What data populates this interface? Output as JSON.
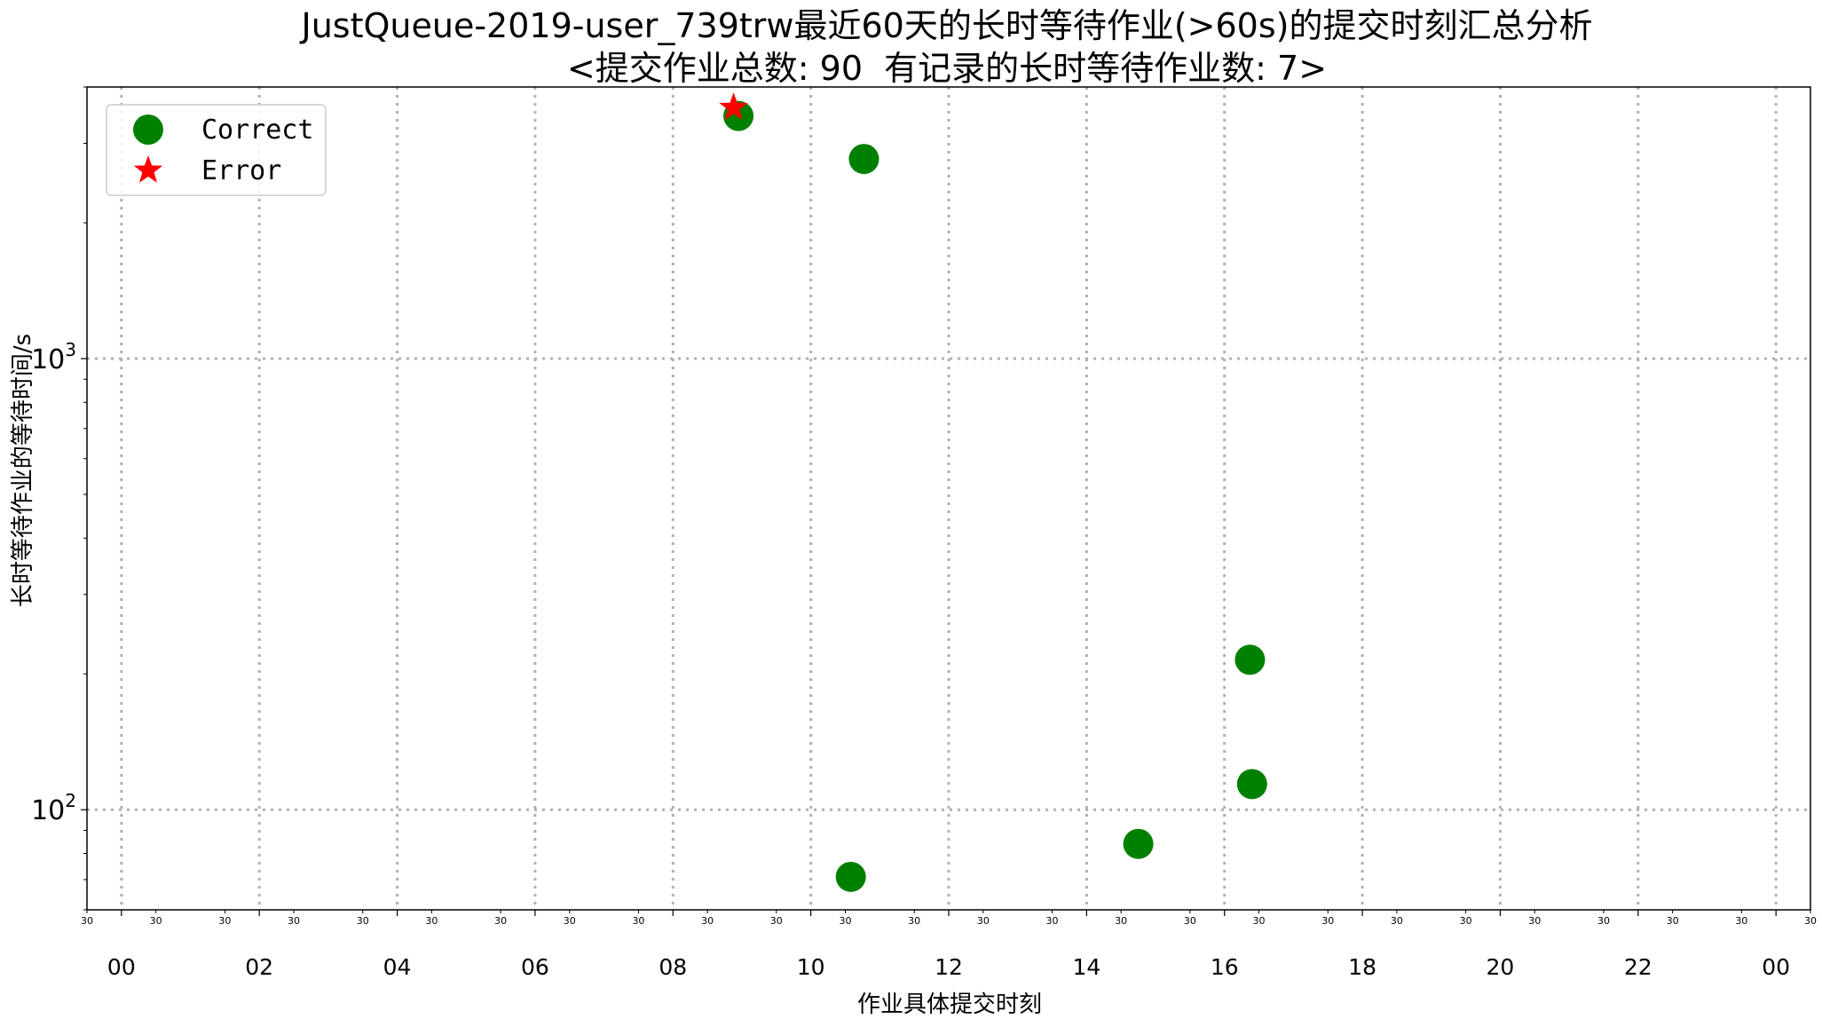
{
  "chart_data": {
    "type": "scatter",
    "title": "JustQueue-2019-user_739trw最近60天的长时等待作业(>60s)的提交时刻汇总分析",
    "subtitle": "<提交作业总数: 90  有记录的长时等待作业数: 7>",
    "xlabel": "作业具体提交时刻",
    "ylabel": "长时等待作业的等待时间/s",
    "x_unit": "hour of day",
    "xlim": [
      -0.5,
      24.5
    ],
    "y_scale": "log",
    "ylim": [
      60,
      4000
    ],
    "grid": true,
    "legend_position": "upper-left",
    "x_major_ticks": [
      {
        "value": 0,
        "label": "00"
      },
      {
        "value": 2,
        "label": "02"
      },
      {
        "value": 4,
        "label": "04"
      },
      {
        "value": 6,
        "label": "06"
      },
      {
        "value": 8,
        "label": "08"
      },
      {
        "value": 10,
        "label": "10"
      },
      {
        "value": 12,
        "label": "12"
      },
      {
        "value": 14,
        "label": "14"
      },
      {
        "value": 16,
        "label": "16"
      },
      {
        "value": 18,
        "label": "18"
      },
      {
        "value": 20,
        "label": "20"
      },
      {
        "value": 22,
        "label": "22"
      },
      {
        "value": 24,
        "label": "00"
      }
    ],
    "x_minor_tick_label": "30",
    "y_ticks": [
      {
        "value": 100,
        "base": "10",
        "exp": "2"
      },
      {
        "value": 1000,
        "base": "10",
        "exp": "3"
      }
    ],
    "series": [
      {
        "name": "Correct",
        "marker": "circle",
        "color": "#008000",
        "points": [
          {
            "x": 8.95,
            "y": 3450
          },
          {
            "x": 10.77,
            "y": 2770
          },
          {
            "x": 10.58,
            "y": 71
          },
          {
            "x": 14.75,
            "y": 84
          },
          {
            "x": 16.37,
            "y": 215
          },
          {
            "x": 16.4,
            "y": 114
          }
        ]
      },
      {
        "name": "Error",
        "marker": "star",
        "color": "#ff0000",
        "points": [
          {
            "x": 8.88,
            "y": 3600
          }
        ]
      }
    ]
  }
}
